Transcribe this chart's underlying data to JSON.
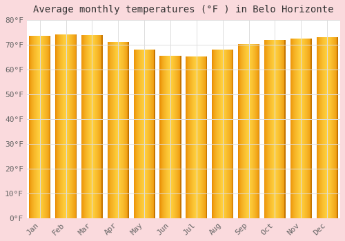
{
  "title": "Average monthly temperatures (°F ) in Belo Horizonte",
  "months": [
    "Jan",
    "Feb",
    "Mar",
    "Apr",
    "May",
    "Jun",
    "Jul",
    "Aug",
    "Sep",
    "Oct",
    "Nov",
    "Dec"
  ],
  "values": [
    73.5,
    74.2,
    74.0,
    71.2,
    68.0,
    65.5,
    65.2,
    68.0,
    70.2,
    72.0,
    72.5,
    73.0
  ],
  "bar_color_center": "#FFD040",
  "bar_color_edge": "#E88A00",
  "background_color": "#FADADD",
  "plot_bg_color": "#FFFFFF",
  "grid_color": "#DDDDDD",
  "title_color": "#333333",
  "tick_color": "#666666",
  "ylim": [
    0,
    80
  ],
  "yticks": [
    0,
    10,
    20,
    30,
    40,
    50,
    60,
    70,
    80
  ],
  "ytick_labels": [
    "0°F",
    "10°F",
    "20°F",
    "30°F",
    "40°F",
    "50°F",
    "60°F",
    "70°F",
    "80°F"
  ],
  "title_fontsize": 10,
  "tick_fontsize": 8,
  "font_family": "monospace"
}
